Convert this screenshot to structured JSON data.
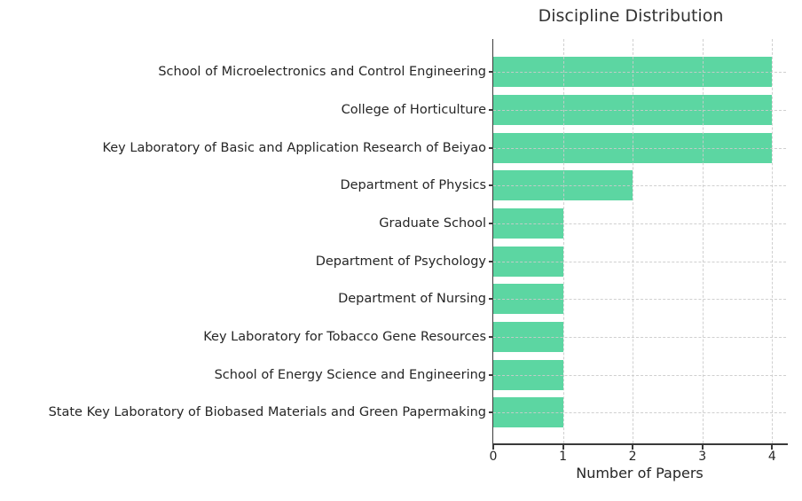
{
  "chart_data": {
    "type": "bar",
    "orientation": "horizontal",
    "title": "Discipline Distribution",
    "xlabel": "Number of Papers",
    "categories": [
      "School of Microelectronics and Control Engineering",
      "College of Horticulture",
      "Key Laboratory of Basic and Application Research of Beiyao",
      "Department of Physics",
      "Graduate School",
      "Department of Psychology",
      "Department of Nursing",
      "Key Laboratory for Tobacco Gene Resources",
      "School of Energy Science and Engineering",
      "State Key Laboratory of Biobased Materials and Green Papermaking"
    ],
    "values": [
      4,
      4,
      4,
      2,
      1,
      1,
      1,
      1,
      1,
      1
    ],
    "xticks": [
      0,
      1,
      2,
      3,
      4
    ],
    "xlim": [
      0,
      4.2
    ],
    "grid": "dashed",
    "legend": "none",
    "bar_color": "#5cd6a2",
    "grid_color": "#cbcbcb",
    "axis_color": "#3a3a3a",
    "text_color": "#262626"
  }
}
